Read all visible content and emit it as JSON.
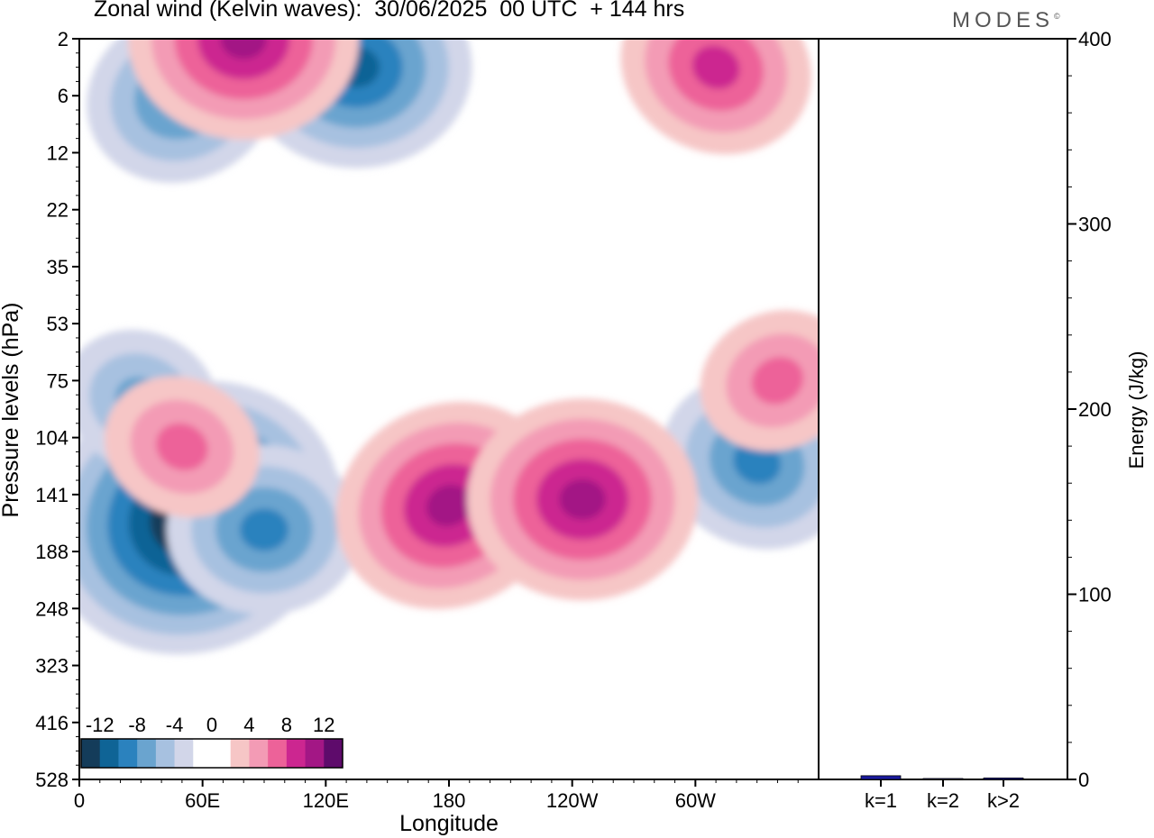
{
  "title": "Zonal wind (Kelvin waves):  30/06/2025  00 UTC  + 144 hrs",
  "brand": "MODES",
  "brand_mark": "©",
  "colors": {
    "negative": [
      "#143c5a",
      "#0f6496",
      "#2b82be",
      "#6aa4cf",
      "#a7c1e0",
      "#d2d6e9"
    ],
    "zero": "#ffffff",
    "positive": [
      "#f6c6c6",
      "#f39bb5",
      "#ed6299",
      "#cc2690",
      "#a31785",
      "#5e0b6b"
    ],
    "energy_bar": "#1a1a9e"
  },
  "chart_data": [
    {
      "type": "heatmap",
      "title": "Zonal wind (Kelvin waves):  30/06/2025  00 UTC  + 144 hrs",
      "xlabel": "Longitude",
      "ylabel": "Pressure levels (hPa)",
      "x_ticks": [
        "0",
        "60E",
        "120E",
        "180",
        "120W",
        "60W"
      ],
      "x_range_deg_east": [
        0,
        360
      ],
      "y_ticks": [
        "2",
        "6",
        "12",
        "22",
        "35",
        "53",
        "75",
        "104",
        "141",
        "188",
        "248",
        "323",
        "416",
        "528"
      ],
      "colorbar": {
        "labels": [
          "-12",
          "-8",
          "-4",
          "0",
          "4",
          "8",
          "12"
        ],
        "levels": [
          -14,
          -12,
          -10,
          -8,
          -6,
          -4,
          -2,
          2,
          4,
          6,
          8,
          10,
          12,
          14
        ]
      },
      "features": [
        {
          "sign": "negative",
          "peak": -14,
          "lon": 55,
          "hPa": 160
        },
        {
          "sign": "negative",
          "peak": -8,
          "lon": 90,
          "hPa": 170
        },
        {
          "sign": "negative",
          "peak": -6,
          "lon": 30,
          "hPa": 85
        },
        {
          "sign": "negative",
          "peak": -8,
          "lon": 50,
          "hPa": 6
        },
        {
          "sign": "negative",
          "peak": -10,
          "lon": 135,
          "hPa": 4
        },
        {
          "sign": "negative",
          "peak": -8,
          "lon": 330,
          "hPa": 120
        },
        {
          "sign": "positive",
          "peak": 10,
          "lon": 180,
          "hPa": 150
        },
        {
          "sign": "positive",
          "peak": 10,
          "lon": 245,
          "hPa": 145
        },
        {
          "sign": "positive",
          "peak": 6,
          "lon": 50,
          "hPa": 110
        },
        {
          "sign": "positive",
          "peak": 6,
          "lon": 340,
          "hPa": 75
        },
        {
          "sign": "positive",
          "peak": 10,
          "lon": 80,
          "hPa": 2
        },
        {
          "sign": "positive",
          "peak": 8,
          "lon": 310,
          "hPa": 4
        }
      ]
    },
    {
      "type": "bar",
      "ylabel": "Energy (J/kg)",
      "categories": [
        "k=1",
        "k=2",
        "k>2"
      ],
      "values": [
        2,
        0.5,
        0.8
      ],
      "ylim": [
        0,
        400
      ],
      "y_ticks": [
        "0",
        "100",
        "200",
        "300",
        "400"
      ]
    }
  ]
}
